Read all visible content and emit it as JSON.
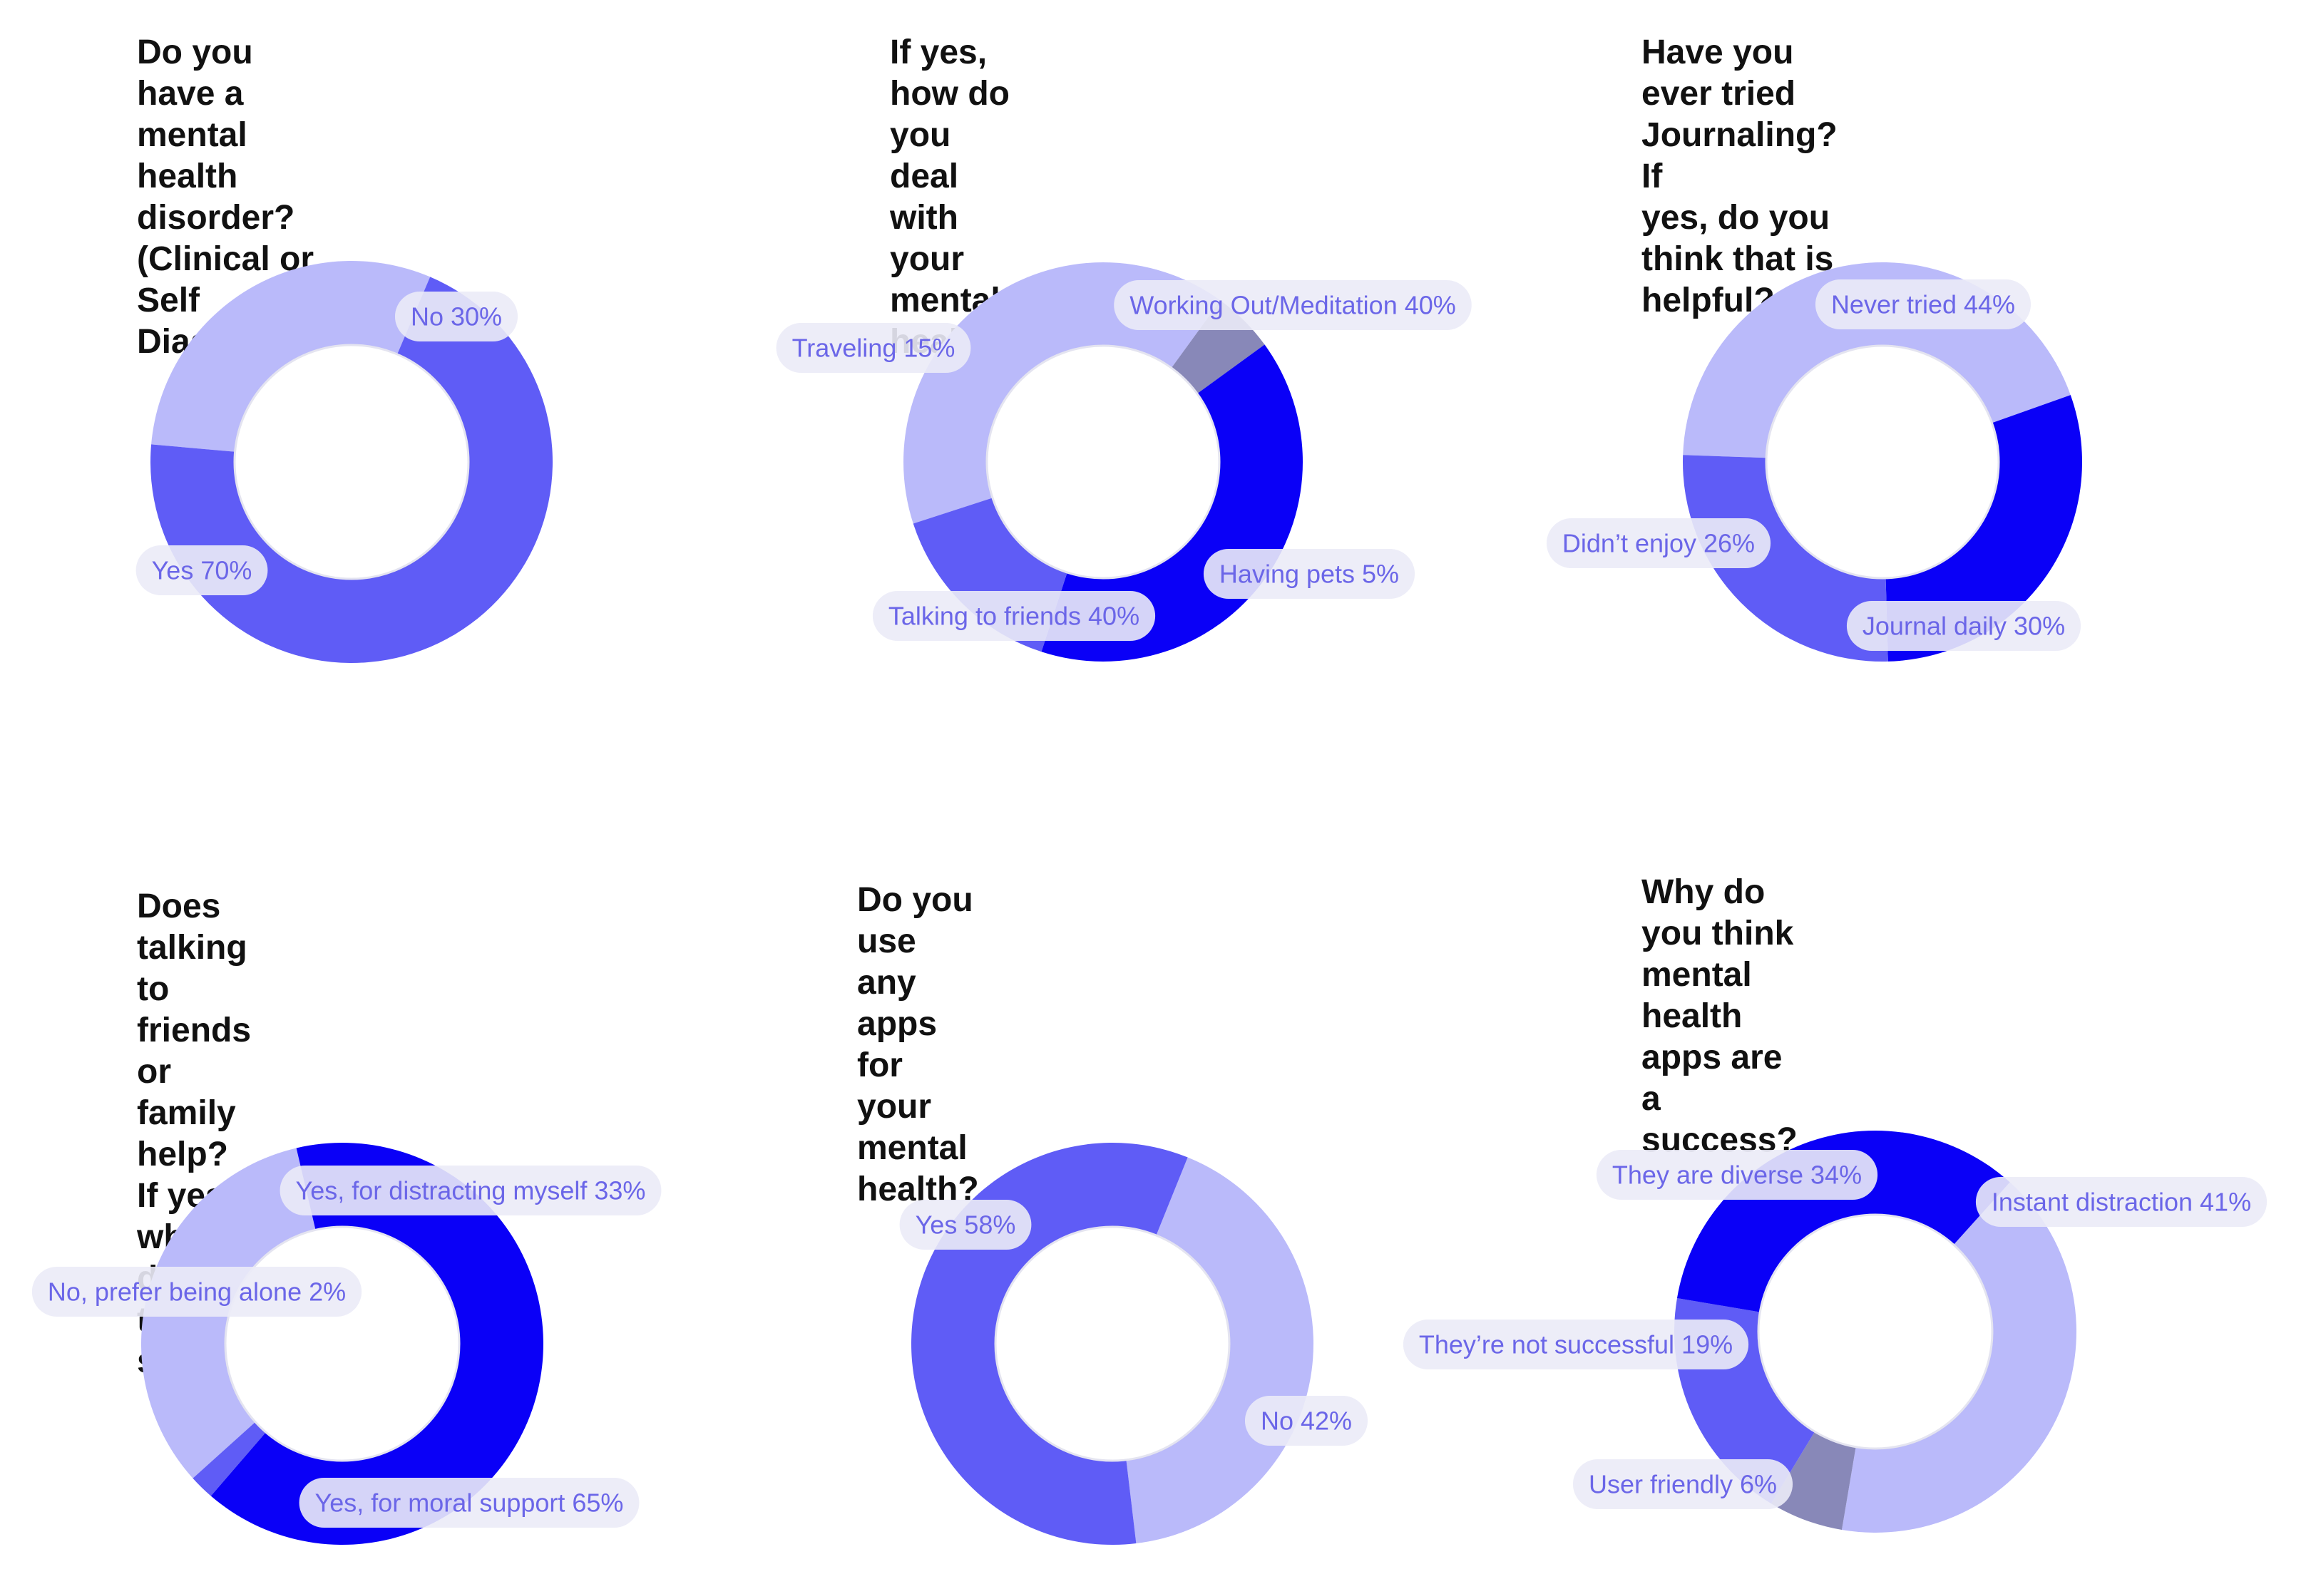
{
  "colors": {
    "light": "#babafa",
    "medium": "#5f5cf6",
    "strong": "#0a00f7",
    "gray": "#8888b8",
    "pill_bg": "#ebebf7",
    "label": "#6b66e8"
  },
  "chart_data": [
    {
      "type": "pie",
      "title": "Do you have a mental health\ndisorder?(Clinical or Self\nDiagnosed)",
      "slices": [
        {
          "label": "No",
          "value": 30,
          "text": "No 30%",
          "color": "light"
        },
        {
          "label": "Yes",
          "value": 70,
          "text": "Yes 70%",
          "color": "medium"
        }
      ]
    },
    {
      "type": "pie",
      "title": "If yes, how do you deal with your\nmental health?",
      "slices": [
        {
          "label": "Working Out/Meditation",
          "value": 40,
          "text": "Working Out/Meditation 40%",
          "color": "light"
        },
        {
          "label": "Having pets",
          "value": 5,
          "text": "Having pets 5%",
          "color": "gray"
        },
        {
          "label": "Talking to friends",
          "value": 40,
          "text": "Talking to friends 40%",
          "color": "strong"
        },
        {
          "label": "Traveling",
          "value": 15,
          "text": "Traveling 15%",
          "color": "medium"
        }
      ]
    },
    {
      "type": "pie",
      "title": "Have you ever tried Journaling? If\nyes, do you think that is helpful?",
      "slices": [
        {
          "label": "Never tried",
          "value": 44,
          "text": "Never tried 44%",
          "color": "light"
        },
        {
          "label": "Journal daily",
          "value": 30,
          "text": "Journal daily 30%",
          "color": "strong"
        },
        {
          "label": "Didn’t enjoy",
          "value": 26,
          "text": "Didn’t enjoy 26%",
          "color": "medium"
        }
      ]
    },
    {
      "type": "pie",
      "title": "Does talking to friends or family\nhelp?\nIf yes, why do think so?",
      "slices": [
        {
          "label": "Yes, for distracting myself",
          "value": 33,
          "text": "Yes, for distracting myself 33%",
          "color": "light"
        },
        {
          "label": "Yes, for moral support",
          "value": 65,
          "text": "Yes, for moral support 65%",
          "color": "strong"
        },
        {
          "label": "No, prefer being alone",
          "value": 2,
          "text": "No, prefer being alone 2%",
          "color": "medium"
        }
      ]
    },
    {
      "type": "pie",
      "title": "Do you use any apps for your\nmental health?",
      "slices": [
        {
          "label": "No",
          "value": 42,
          "text": "No 42%",
          "color": "light"
        },
        {
          "label": "Yes",
          "value": 58,
          "text": "Yes 58%",
          "color": "medium"
        }
      ]
    },
    {
      "type": "pie",
      "title": "Why do you think mental health\napps are a success?",
      "slices": [
        {
          "label": "Instant distraction",
          "value": 41,
          "text": "Instant distraction 41%",
          "color": "light"
        },
        {
          "label": "User friendly",
          "value": 6,
          "text": "User friendly 6%",
          "color": "gray"
        },
        {
          "label": "They’re not successful",
          "value": 19,
          "text": "They’re not successful 19%",
          "color": "medium"
        },
        {
          "label": "They are diverse",
          "value": 34,
          "text": "They are diverse 34%",
          "color": "strong"
        }
      ]
    }
  ]
}
